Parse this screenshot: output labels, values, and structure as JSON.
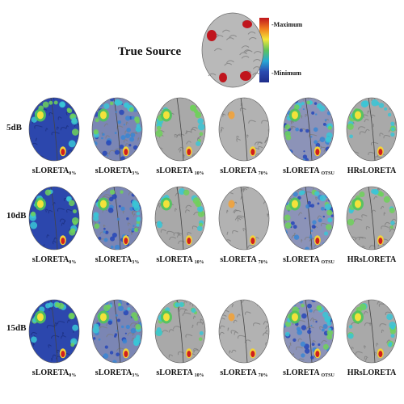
{
  "figure": {
    "title": "True Source",
    "colorbar": {
      "max_label": "-Maximum",
      "min_label": "-Minimum",
      "colors": [
        "#c0151d",
        "#f07b1e",
        "#f4e63a",
        "#5ec45a",
        "#27a9d6",
        "#2b4bb0",
        "#1f2d8a"
      ]
    },
    "rows": [
      {
        "snr": "5dB"
      },
      {
        "snr": "10dB"
      },
      {
        "snr": "15dB"
      }
    ],
    "methods": [
      {
        "base": "sLORETA",
        "sub": "0%",
        "style": "full"
      },
      {
        "base": "sLORETA",
        "sub": "3%",
        "style": "mixed"
      },
      {
        "base": "sLORETA ",
        "sub": "10%",
        "style": "sparse"
      },
      {
        "base": "sLORETA ",
        "sub": "70%",
        "style": "focal"
      },
      {
        "base": "sLORETA ",
        "sub": "OTSU",
        "style": "spotty"
      },
      {
        "base": "HRsLORETA",
        "sub": "",
        "style": "sparse"
      }
    ]
  }
}
